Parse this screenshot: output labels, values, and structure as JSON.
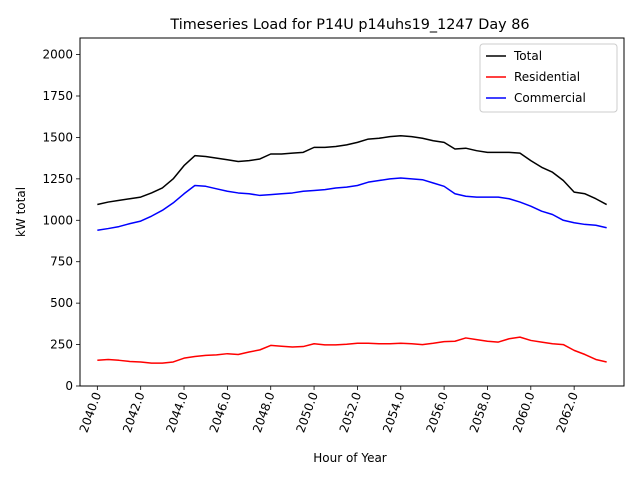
{
  "chart_data": {
    "type": "line",
    "title": "Timeseries Load for P14U p14uhs19_1247  Day 86",
    "xlabel": "Hour of Year",
    "ylabel": "kW total",
    "xlim": [
      2039.2,
      2064.3
    ],
    "ylim": [
      0,
      2100
    ],
    "x_ticks": [
      2040,
      2042,
      2044,
      2046,
      2048,
      2050,
      2052,
      2054,
      2056,
      2058,
      2060,
      2062
    ],
    "x_tick_labels": [
      "2040.0",
      "2042.0",
      "2044.0",
      "2046.0",
      "2048.0",
      "2050.0",
      "2052.0",
      "2054.0",
      "2056.0",
      "2058.0",
      "2060.0",
      "2062.0"
    ],
    "y_ticks": [
      0,
      250,
      500,
      750,
      1000,
      1250,
      1500,
      1750,
      2000
    ],
    "y_tick_labels": [
      "0",
      "250",
      "500",
      "750",
      "1000",
      "1250",
      "1500",
      "1750",
      "2000"
    ],
    "legend_position": "top-right",
    "x": [
      2040.0,
      2040.5,
      2041.0,
      2041.5,
      2042.0,
      2042.5,
      2043.0,
      2043.5,
      2044.0,
      2044.5,
      2045.0,
      2045.5,
      2046.0,
      2046.5,
      2047.0,
      2047.5,
      2048.0,
      2048.5,
      2049.0,
      2049.5,
      2050.0,
      2050.5,
      2051.0,
      2051.5,
      2052.0,
      2052.5,
      2053.0,
      2053.5,
      2054.0,
      2054.5,
      2055.0,
      2055.5,
      2056.0,
      2056.5,
      2057.0,
      2057.5,
      2058.0,
      2058.5,
      2059.0,
      2059.5,
      2060.0,
      2060.5,
      2061.0,
      2061.5,
      2062.0,
      2062.5,
      2063.0,
      2063.5
    ],
    "series": [
      {
        "name": "Total",
        "color": "#000000",
        "values": [
          1095,
          1110,
          1120,
          1130,
          1140,
          1165,
          1195,
          1250,
          1330,
          1390,
          1385,
          1375,
          1365,
          1355,
          1360,
          1370,
          1400,
          1400,
          1405,
          1410,
          1440,
          1440,
          1445,
          1455,
          1470,
          1490,
          1495,
          1505,
          1510,
          1505,
          1495,
          1480,
          1470,
          1430,
          1435,
          1420,
          1410,
          1410,
          1410,
          1405,
          1360,
          1320,
          1290,
          1240,
          1170,
          1160,
          1130,
          1095
        ]
      },
      {
        "name": "Residential",
        "color": "#ff0000",
        "values": [
          155,
          160,
          155,
          148,
          145,
          138,
          138,
          145,
          168,
          178,
          185,
          188,
          195,
          190,
          205,
          218,
          245,
          240,
          235,
          238,
          255,
          248,
          248,
          252,
          258,
          258,
          255,
          255,
          258,
          255,
          250,
          258,
          268,
          270,
          290,
          280,
          270,
          265,
          285,
          295,
          275,
          265,
          255,
          250,
          215,
          190,
          160,
          145
        ]
      },
      {
        "name": "Commercial",
        "color": "#0000ff",
        "values": [
          940,
          950,
          962,
          980,
          995,
          1025,
          1060,
          1105,
          1160,
          1210,
          1205,
          1190,
          1175,
          1165,
          1160,
          1150,
          1155,
          1160,
          1165,
          1175,
          1180,
          1185,
          1195,
          1200,
          1210,
          1230,
          1240,
          1250,
          1255,
          1250,
          1245,
          1225,
          1205,
          1160,
          1145,
          1140,
          1140,
          1140,
          1130,
          1110,
          1085,
          1055,
          1035,
          1000,
          985,
          975,
          970,
          955
        ]
      }
    ]
  }
}
